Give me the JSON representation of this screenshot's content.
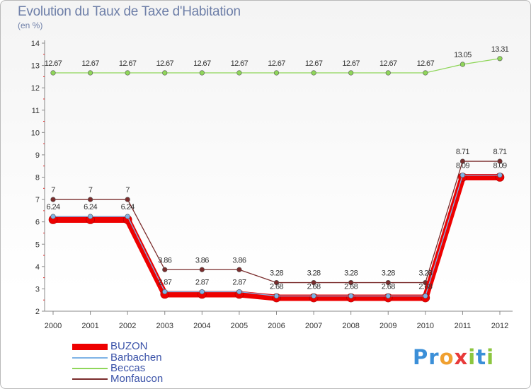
{
  "chart_data": {
    "type": "line",
    "title": "Evolution du Taux de Taxe d'Habitation",
    "subtitle": "(en %)",
    "x": [
      "2000",
      "2001",
      "2002",
      "2003",
      "2004",
      "2005",
      "2006",
      "2007",
      "2008",
      "2009",
      "2010",
      "2011",
      "2012"
    ],
    "ylim": [
      2,
      14
    ],
    "yticks": [
      "2",
      "3",
      "4",
      "5",
      "6",
      "7",
      "8",
      "9",
      "10",
      "11",
      "12",
      "13",
      "14"
    ],
    "grid": false,
    "legend_position": "bottom-left",
    "series": [
      {
        "name": "BUZON",
        "color": "#ee0000",
        "values": [
          6.1,
          6.1,
          6.1,
          2.76,
          2.76,
          2.76,
          2.6,
          2.6,
          2.6,
          2.6,
          2.6,
          8.0,
          8.0
        ],
        "labels": []
      },
      {
        "name": "Barbachen",
        "color": "#7fb3e6",
        "values": [
          6.24,
          6.24,
          6.24,
          2.87,
          2.87,
          2.87,
          2.68,
          2.68,
          2.68,
          2.68,
          2.68,
          8.09,
          8.09
        ],
        "labels": [
          "6.24",
          "6.24",
          "6.24",
          "2.87",
          "2.87",
          "2.87",
          "2.68",
          "2.68",
          "2.68",
          "2.68",
          "2.68",
          "8.09",
          "8.09"
        ]
      },
      {
        "name": "Beccas",
        "color": "#8fd65a",
        "values": [
          12.67,
          12.67,
          12.67,
          12.67,
          12.67,
          12.67,
          12.67,
          12.67,
          12.67,
          12.67,
          12.67,
          13.05,
          13.31
        ],
        "labels": [
          "12.67",
          "12.67",
          "12.67",
          "12.67",
          "12.67",
          "12.67",
          "12.67",
          "12.67",
          "12.67",
          "12.67",
          "12.67",
          "13.05",
          "13.31"
        ]
      },
      {
        "name": "Monfaucon",
        "color": "#7a2c2c",
        "values": [
          7,
          7,
          7,
          3.86,
          3.86,
          3.86,
          3.28,
          3.28,
          3.28,
          3.28,
          3.28,
          8.71,
          8.71
        ],
        "labels": [
          "7",
          "7",
          "7",
          "3.86",
          "3.86",
          "3.86",
          "3.28",
          "3.28",
          "3.28",
          "3.28",
          "3.28",
          "8.71",
          "8.71"
        ]
      }
    ]
  },
  "logo": {
    "letters": [
      "P",
      "r",
      "o",
      "x",
      "i",
      "t",
      "i"
    ],
    "colors": [
      "#3b8fd8",
      "#3b8fd8",
      "#f0a030",
      "#e83a3a",
      "#8cc63f",
      "#3b8fd8",
      "#8cc63f"
    ]
  }
}
